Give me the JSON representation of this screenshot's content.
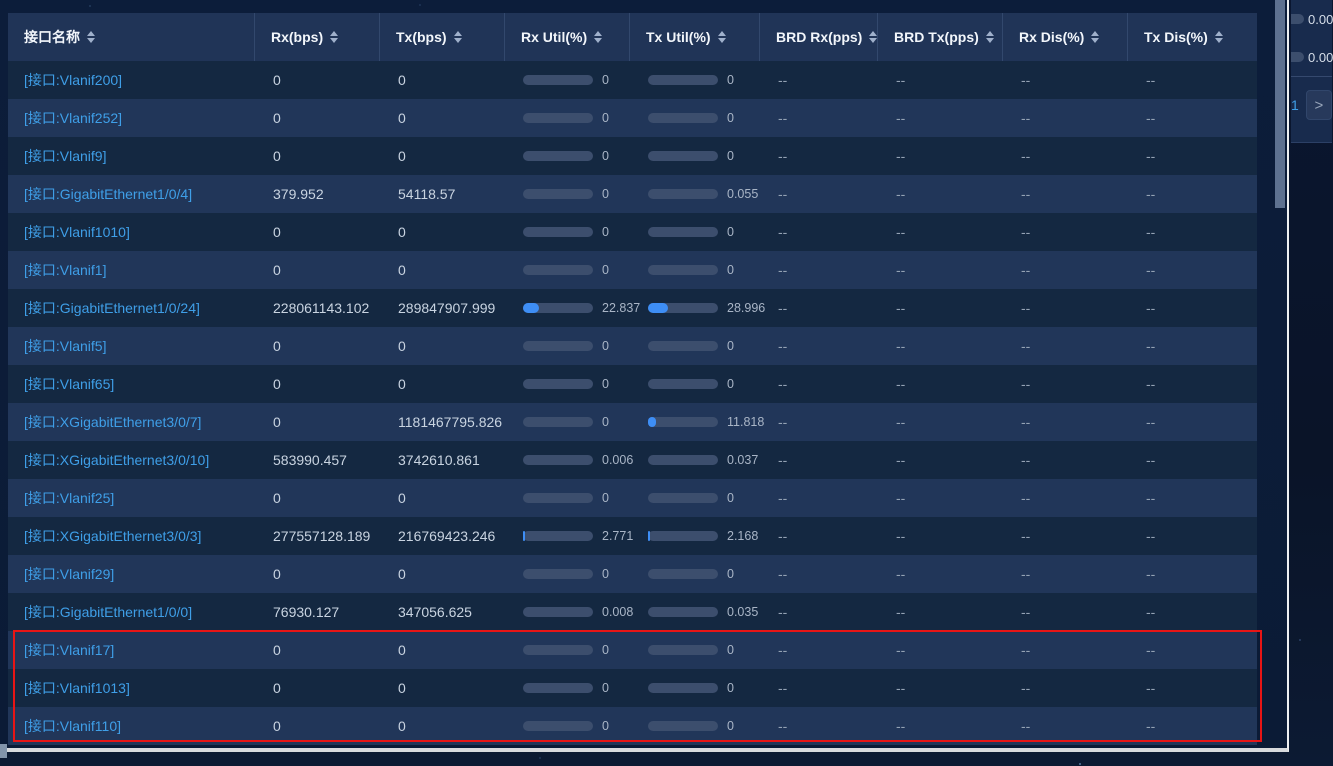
{
  "table": {
    "columns": [
      {
        "label": "接口名称"
      },
      {
        "label": "Rx(bps)"
      },
      {
        "label": "Tx(bps)"
      },
      {
        "label": "Rx Util(%)"
      },
      {
        "label": "Tx Util(%)"
      },
      {
        "label": "BRD Rx(pps)"
      },
      {
        "label": "BRD Tx(pps)"
      },
      {
        "label": "Rx Dis(%)"
      },
      {
        "label": "Tx Dis(%)"
      }
    ],
    "rows": [
      {
        "name": "[接口:Vlanif200]",
        "rx": "0",
        "tx": "0",
        "rx_util": "0",
        "tx_util": "0",
        "brd_rx": "--",
        "brd_tx": "--",
        "rx_dis": "--",
        "tx_dis": "--"
      },
      {
        "name": "[接口:Vlanif252]",
        "rx": "0",
        "tx": "0",
        "rx_util": "0",
        "tx_util": "0",
        "brd_rx": "--",
        "brd_tx": "--",
        "rx_dis": "--",
        "tx_dis": "--"
      },
      {
        "name": "[接口:Vlanif9]",
        "rx": "0",
        "tx": "0",
        "rx_util": "0",
        "tx_util": "0",
        "brd_rx": "--",
        "brd_tx": "--",
        "rx_dis": "--",
        "tx_dis": "--"
      },
      {
        "name": "[接口:GigabitEthernet1/0/4]",
        "rx": "379.952",
        "tx": "54118.57",
        "rx_util": "0",
        "tx_util": "0.055",
        "brd_rx": "--",
        "brd_tx": "--",
        "rx_dis": "--",
        "tx_dis": "--"
      },
      {
        "name": "[接口:Vlanif1010]",
        "rx": "0",
        "tx": "0",
        "rx_util": "0",
        "tx_util": "0",
        "brd_rx": "--",
        "brd_tx": "--",
        "rx_dis": "--",
        "tx_dis": "--"
      },
      {
        "name": "[接口:Vlanif1]",
        "rx": "0",
        "tx": "0",
        "rx_util": "0",
        "tx_util": "0",
        "brd_rx": "--",
        "brd_tx": "--",
        "rx_dis": "--",
        "tx_dis": "--"
      },
      {
        "name": "[接口:GigabitEthernet1/0/24]",
        "rx": "228061143.102",
        "tx": "289847907.999",
        "rx_util": "22.837",
        "tx_util": "28.996",
        "brd_rx": "--",
        "brd_tx": "--",
        "rx_dis": "--",
        "tx_dis": "--"
      },
      {
        "name": "[接口:Vlanif5]",
        "rx": "0",
        "tx": "0",
        "rx_util": "0",
        "tx_util": "0",
        "brd_rx": "--",
        "brd_tx": "--",
        "rx_dis": "--",
        "tx_dis": "--"
      },
      {
        "name": "[接口:Vlanif65]",
        "rx": "0",
        "tx": "0",
        "rx_util": "0",
        "tx_util": "0",
        "brd_rx": "--",
        "brd_tx": "--",
        "rx_dis": "--",
        "tx_dis": "--"
      },
      {
        "name": "[接口:XGigabitEthernet3/0/7]",
        "rx": "0",
        "tx": "1181467795.826",
        "rx_util": "0",
        "tx_util": "11.818",
        "brd_rx": "--",
        "brd_tx": "--",
        "rx_dis": "--",
        "tx_dis": "--"
      },
      {
        "name": "[接口:XGigabitEthernet3/0/10]",
        "rx": "583990.457",
        "tx": "3742610.861",
        "rx_util": "0.006",
        "tx_util": "0.037",
        "brd_rx": "--",
        "brd_tx": "--",
        "rx_dis": "--",
        "tx_dis": "--"
      },
      {
        "name": "[接口:Vlanif25]",
        "rx": "0",
        "tx": "0",
        "rx_util": "0",
        "tx_util": "0",
        "brd_rx": "--",
        "brd_tx": "--",
        "rx_dis": "--",
        "tx_dis": "--"
      },
      {
        "name": "[接口:XGigabitEthernet3/0/3]",
        "rx": "277557128.189",
        "tx": "216769423.246",
        "rx_util": "2.771",
        "tx_util": "2.168",
        "brd_rx": "--",
        "brd_tx": "--",
        "rx_dis": "--",
        "tx_dis": "--"
      },
      {
        "name": "[接口:Vlanif29]",
        "rx": "0",
        "tx": "0",
        "rx_util": "0",
        "tx_util": "0",
        "brd_rx": "--",
        "brd_tx": "--",
        "rx_dis": "--",
        "tx_dis": "--"
      },
      {
        "name": "[接口:GigabitEthernet1/0/0]",
        "rx": "76930.127",
        "tx": "347056.625",
        "rx_util": "0.008",
        "tx_util": "0.035",
        "brd_rx": "--",
        "brd_tx": "--",
        "rx_dis": "--",
        "tx_dis": "--"
      },
      {
        "name": "[接口:Vlanif17]",
        "rx": "0",
        "tx": "0",
        "rx_util": "0",
        "tx_util": "0",
        "brd_rx": "--",
        "brd_tx": "--",
        "rx_dis": "--",
        "tx_dis": "--"
      },
      {
        "name": "[接口:Vlanif1013]",
        "rx": "0",
        "tx": "0",
        "rx_util": "0",
        "tx_util": "0",
        "brd_rx": "--",
        "brd_tx": "--",
        "rx_dis": "--",
        "tx_dis": "--"
      },
      {
        "name": "[接口:Vlanif110]",
        "rx": "0",
        "tx": "0",
        "rx_util": "0",
        "tx_util": "0",
        "brd_rx": "--",
        "brd_tx": "--",
        "rx_dis": "--",
        "tx_dis": "--"
      }
    ]
  },
  "background_panel": {
    "rows": [
      {
        "value": "0.00"
      },
      {
        "value": "0.00"
      }
    ],
    "pagination": {
      "current_page": "1",
      "next_label": ">"
    }
  },
  "colors": {
    "link_blue": "#3f9fe8",
    "bar_fill_blue": "#3e8ef5",
    "bar_track": "#3c4e6d",
    "row_dark": "#142841",
    "row_light": "#213659",
    "header_bg": "#203457",
    "highlight_red": "#e81515"
  }
}
